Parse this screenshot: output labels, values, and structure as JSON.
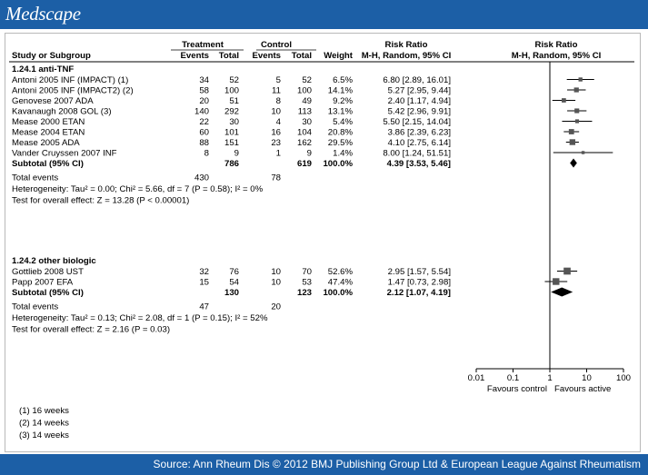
{
  "header": {
    "logo": "Medscape"
  },
  "footer": {
    "source": "Source: Ann Rheum Dis © 2012 BMJ Publishing Group Ltd & European League Against Rheumatism"
  },
  "chart_data": {
    "type": "forest",
    "columns": {
      "treatment": "Treatment",
      "control": "Control",
      "study": "Study or Subgroup",
      "events": "Events",
      "total": "Total",
      "weight": "Weight",
      "rr_title": "Risk Ratio",
      "rr_method": "M-H, Random, 95% CI"
    },
    "subgroups": [
      {
        "name": "1.24.1 anti-TNF",
        "studies": [
          {
            "label": "Antoni 2005 INF (IMPACT) (1)",
            "t_events": "34",
            "t_total": "52",
            "c_events": "5",
            "c_total": "52",
            "weight": "6.5%",
            "ci_text": "6.80 [2.89, 16.01]",
            "rr": 6.8,
            "lo": 2.89,
            "hi": 16.01,
            "w": 6.5
          },
          {
            "label": "Antoni 2005 INF (IMPACT2) (2)",
            "t_events": "58",
            "t_total": "100",
            "c_events": "11",
            "c_total": "100",
            "weight": "14.1%",
            "ci_text": "5.27 [2.95, 9.44]",
            "rr": 5.27,
            "lo": 2.95,
            "hi": 9.44,
            "w": 14.1
          },
          {
            "label": "Genovese 2007 ADA",
            "t_events": "20",
            "t_total": "51",
            "c_events": "8",
            "c_total": "49",
            "weight": "9.2%",
            "ci_text": "2.40 [1.17, 4.94]",
            "rr": 2.4,
            "lo": 1.17,
            "hi": 4.94,
            "w": 9.2
          },
          {
            "label": "Kavanaugh 2008 GOL (3)",
            "t_events": "140",
            "t_total": "292",
            "c_events": "10",
            "c_total": "113",
            "weight": "13.1%",
            "ci_text": "5.42 [2.96, 9.91]",
            "rr": 5.42,
            "lo": 2.96,
            "hi": 9.91,
            "w": 13.1
          },
          {
            "label": "Mease 2000 ETAN",
            "t_events": "22",
            "t_total": "30",
            "c_events": "4",
            "c_total": "30",
            "weight": "5.4%",
            "ci_text": "5.50 [2.15, 14.04]",
            "rr": 5.5,
            "lo": 2.15,
            "hi": 14.04,
            "w": 5.4
          },
          {
            "label": "Mease 2004 ETAN",
            "t_events": "60",
            "t_total": "101",
            "c_events": "16",
            "c_total": "104",
            "weight": "20.8%",
            "ci_text": "3.86 [2.39, 6.23]",
            "rr": 3.86,
            "lo": 2.39,
            "hi": 6.23,
            "w": 20.8
          },
          {
            "label": "Mease 2005 ADA",
            "t_events": "88",
            "t_total": "151",
            "c_events": "23",
            "c_total": "162",
            "weight": "29.5%",
            "ci_text": "4.10 [2.75, 6.14]",
            "rr": 4.1,
            "lo": 2.75,
            "hi": 6.14,
            "w": 29.5
          },
          {
            "label": "Vander Cruyssen 2007 INF",
            "t_events": "8",
            "t_total": "9",
            "c_events": "1",
            "c_total": "9",
            "weight": "1.4%",
            "ci_text": "8.00 [1.24, 51.51]",
            "rr": 8.0,
            "lo": 1.24,
            "hi": 51.51,
            "w": 1.4
          }
        ],
        "subtotal": {
          "label": "Subtotal (95% CI)",
          "t_total": "786",
          "c_total": "619",
          "weight": "100.0%",
          "ci_text": "4.39 [3.53, 5.46]",
          "rr": 4.39,
          "lo": 3.53,
          "hi": 5.46
        },
        "total_events": {
          "label": "Total events",
          "t": "430",
          "c": "78"
        },
        "heterogeneity": "Heterogeneity: Tau² = 0.00; Chi² = 5.66, df = 7 (P = 0.58); I² = 0%",
        "overall": "Test for overall effect: Z = 13.28 (P < 0.00001)"
      },
      {
        "name": "1.24.2 other biologic",
        "studies": [
          {
            "label": "Gottlieb 2008 UST",
            "t_events": "32",
            "t_total": "76",
            "c_events": "10",
            "c_total": "70",
            "weight": "52.6%",
            "ci_text": "2.95 [1.57, 5.54]",
            "rr": 2.95,
            "lo": 1.57,
            "hi": 5.54,
            "w": 52.6
          },
          {
            "label": "Papp 2007 EFA",
            "t_events": "15",
            "t_total": "54",
            "c_events": "10",
            "c_total": "53",
            "weight": "47.4%",
            "ci_text": "1.47 [0.73, 2.98]",
            "rr": 1.47,
            "lo": 0.73,
            "hi": 2.98,
            "w": 47.4
          }
        ],
        "subtotal": {
          "label": "Subtotal (95% CI)",
          "t_total": "130",
          "c_total": "123",
          "weight": "100.0%",
          "ci_text": "2.12 [1.07, 4.19]",
          "rr": 2.12,
          "lo": 1.07,
          "hi": 4.19
        },
        "total_events": {
          "label": "Total events",
          "t": "47",
          "c": "20"
        },
        "heterogeneity": "Heterogeneity: Tau² = 0.13; Chi² = 2.08, df = 1 (P = 0.15); I² = 52%",
        "overall": "Test for overall effect: Z = 2.16 (P = 0.03)"
      }
    ],
    "x_axis": {
      "scale": "log",
      "ticks": [
        0.01,
        0.1,
        1,
        10,
        100
      ],
      "tick_labels": [
        "0.01",
        "0.1",
        "1",
        "10",
        "100"
      ],
      "label_left": "Favours control",
      "label_right": "Favours active"
    },
    "footnotes": [
      "(1) 16 weeks",
      "(2) 14 weeks",
      "(3) 14 weeks"
    ]
  }
}
